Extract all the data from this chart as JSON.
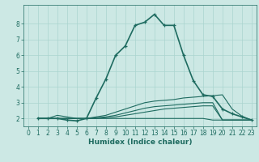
{
  "title": "",
  "xlabel": "Humidex (Indice chaleur)",
  "bg_color": "#cce8e4",
  "line_color": "#1e6b60",
  "grid_color": "#aad4cf",
  "xlim": [
    -0.5,
    23.5
  ],
  "ylim": [
    1.5,
    9.2
  ],
  "xticks": [
    0,
    1,
    2,
    3,
    4,
    5,
    6,
    7,
    8,
    9,
    10,
    11,
    12,
    13,
    14,
    15,
    16,
    17,
    18,
    19,
    20,
    21,
    22,
    23
  ],
  "yticks": [
    2,
    3,
    4,
    5,
    6,
    7,
    8
  ],
  "lines": [
    {
      "x": [
        1,
        2,
        3,
        4,
        5,
        6,
        7,
        8,
        9,
        10,
        11,
        12,
        13,
        14,
        15,
        16,
        17,
        18,
        19,
        20,
        21,
        22,
        23
      ],
      "y": [
        2.0,
        2.0,
        2.0,
        1.9,
        1.85,
        2.0,
        3.3,
        4.5,
        6.0,
        6.6,
        7.9,
        8.1,
        8.6,
        7.9,
        7.9,
        6.0,
        4.4,
        3.5,
        3.4,
        2.6,
        2.3,
        2.1,
        1.9
      ],
      "marker": true,
      "lw": 1.2
    },
    {
      "x": [
        1,
        2,
        3,
        4,
        5,
        6,
        7,
        8,
        9,
        10,
        11,
        12,
        13,
        14,
        15,
        16,
        17,
        18,
        19,
        20,
        21,
        22,
        23
      ],
      "y": [
        2.0,
        2.0,
        2.2,
        2.1,
        2.0,
        2.0,
        2.1,
        2.2,
        2.4,
        2.6,
        2.8,
        3.0,
        3.1,
        3.15,
        3.2,
        3.3,
        3.35,
        3.4,
        3.45,
        3.5,
        2.6,
        2.15,
        1.9
      ],
      "marker": false,
      "lw": 0.8
    },
    {
      "x": [
        1,
        2,
        3,
        4,
        5,
        6,
        7,
        8,
        9,
        10,
        11,
        12,
        13,
        14,
        15,
        16,
        17,
        18,
        19,
        20,
        21,
        22,
        23
      ],
      "y": [
        2.0,
        2.0,
        2.0,
        2.0,
        2.0,
        2.0,
        2.05,
        2.1,
        2.2,
        2.35,
        2.5,
        2.65,
        2.75,
        2.8,
        2.85,
        2.9,
        2.95,
        3.0,
        3.0,
        1.9,
        1.9,
        1.9,
        1.9
      ],
      "marker": false,
      "lw": 0.8
    },
    {
      "x": [
        1,
        2,
        3,
        4,
        5,
        6,
        7,
        8,
        9,
        10,
        11,
        12,
        13,
        14,
        15,
        16,
        17,
        18,
        19,
        20,
        21,
        22,
        23
      ],
      "y": [
        2.0,
        2.0,
        2.0,
        2.0,
        2.0,
        2.0,
        2.0,
        2.05,
        2.1,
        2.2,
        2.3,
        2.4,
        2.5,
        2.6,
        2.65,
        2.7,
        2.75,
        2.8,
        2.8,
        1.9,
        1.9,
        1.9,
        1.9
      ],
      "marker": false,
      "lw": 0.8
    },
    {
      "x": [
        1,
        2,
        3,
        4,
        5,
        6,
        7,
        8,
        9,
        10,
        11,
        12,
        13,
        14,
        15,
        16,
        17,
        18,
        19,
        20,
        21,
        22,
        23
      ],
      "y": [
        2.0,
        2.0,
        2.0,
        2.0,
        2.0,
        2.0,
        2.0,
        2.0,
        2.0,
        2.0,
        2.0,
        2.0,
        2.0,
        2.0,
        2.0,
        2.0,
        2.0,
        2.0,
        1.9,
        1.9,
        1.9,
        1.9,
        1.9
      ],
      "marker": false,
      "lw": 0.8
    }
  ],
  "tick_fontsize": 5.5,
  "xlabel_fontsize": 6.5
}
